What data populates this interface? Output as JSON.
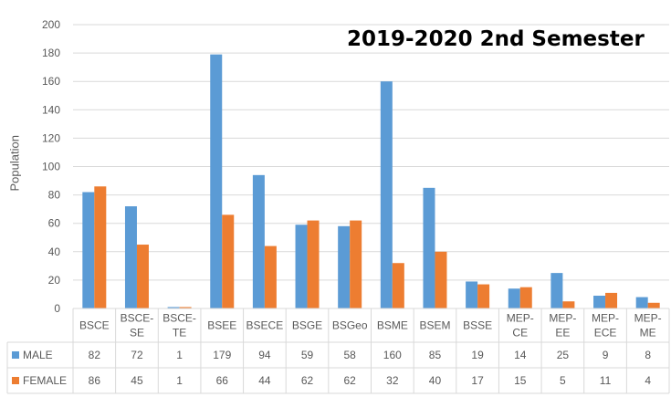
{
  "chart_data": {
    "type": "bar",
    "title": "2019-2020 2nd Semester",
    "ylabel": "Population",
    "xlabel": "",
    "ylim": [
      0,
      200
    ],
    "yticks": [
      0,
      20,
      40,
      60,
      80,
      100,
      120,
      140,
      160,
      180,
      200
    ],
    "grid": true,
    "legend": "data-table",
    "categories": [
      [
        "BSCE"
      ],
      [
        "BSCE-",
        "SE"
      ],
      [
        "BSCE-",
        "TE"
      ],
      [
        "BSEE"
      ],
      [
        "BSECE"
      ],
      [
        "BSGE"
      ],
      [
        "BSGeo"
      ],
      [
        "BSME"
      ],
      [
        "BSEM"
      ],
      [
        "BSSE"
      ],
      [
        "MEP-",
        "CE"
      ],
      [
        "MEP-",
        "EE"
      ],
      [
        "MEP-",
        "ECE"
      ],
      [
        "MEP-",
        "ME"
      ]
    ],
    "series": [
      {
        "name": "MALE",
        "color": "#5b9bd5",
        "values": [
          82,
          72,
          1,
          179,
          94,
          59,
          58,
          160,
          85,
          19,
          14,
          25,
          9,
          8
        ]
      },
      {
        "name": "FEMALE",
        "color": "#ed7d31",
        "values": [
          86,
          45,
          1,
          66,
          44,
          62,
          62,
          32,
          40,
          17,
          15,
          5,
          11,
          4
        ]
      }
    ]
  }
}
